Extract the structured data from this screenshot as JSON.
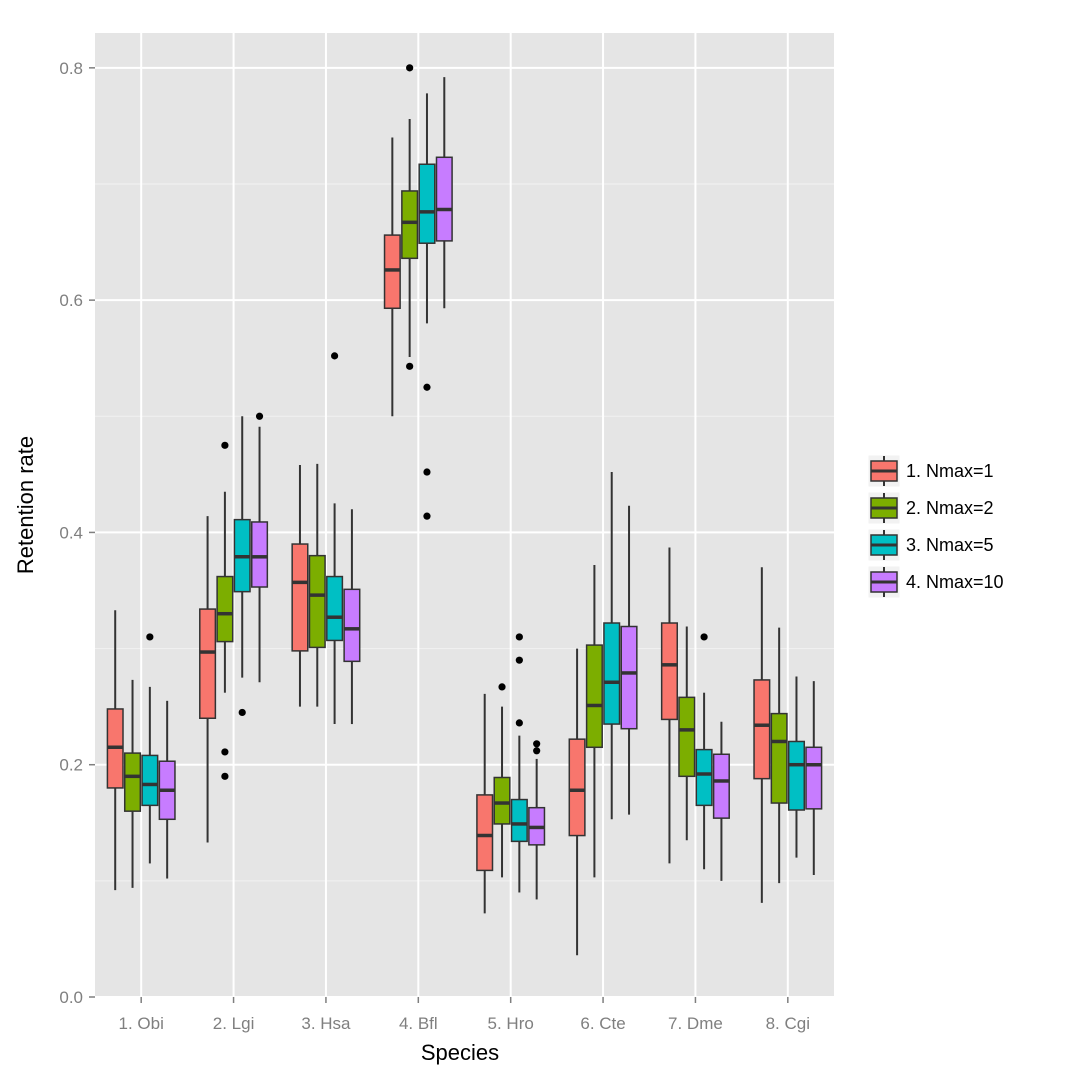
{
  "chart_data": {
    "type": "boxplot",
    "xlabel": "Species",
    "ylabel": "Retention rate",
    "ylim": [
      0,
      0.83
    ],
    "y_ticks": [
      "0.0",
      "0.2",
      "0.4",
      "0.6",
      "0.8"
    ],
    "y_tick_values": [
      0,
      0.2,
      0.4,
      0.6,
      0.8
    ],
    "categories": [
      "1. Obi",
      "2. Lgi",
      "3. Hsa",
      "4. Bfl",
      "5. Hro",
      "6. Cte",
      "7. Dme",
      "8. Cgi"
    ],
    "legend": {
      "position": "right"
    },
    "series": [
      {
        "name": "1. Nmax=1",
        "color": "#F8766D",
        "boxes": [
          {
            "min": 0.092,
            "q1": 0.18,
            "median": 0.215,
            "q3": 0.248,
            "max": 0.333,
            "outliers": []
          },
          {
            "min": 0.133,
            "q1": 0.24,
            "median": 0.297,
            "q3": 0.334,
            "max": 0.414,
            "outliers": []
          },
          {
            "min": 0.25,
            "q1": 0.298,
            "median": 0.357,
            "q3": 0.39,
            "max": 0.458,
            "outliers": []
          },
          {
            "min": 0.5,
            "q1": 0.593,
            "median": 0.626,
            "q3": 0.656,
            "max": 0.74,
            "outliers": []
          },
          {
            "min": 0.072,
            "q1": 0.109,
            "median": 0.139,
            "q3": 0.174,
            "max": 0.261,
            "outliers": []
          },
          {
            "min": 0.036,
            "q1": 0.139,
            "median": 0.178,
            "q3": 0.222,
            "max": 0.3,
            "outliers": []
          },
          {
            "min": 0.115,
            "q1": 0.239,
            "median": 0.286,
            "q3": 0.322,
            "max": 0.387,
            "outliers": []
          },
          {
            "min": 0.081,
            "q1": 0.188,
            "median": 0.234,
            "q3": 0.273,
            "max": 0.37,
            "outliers": []
          }
        ]
      },
      {
        "name": "2. Nmax=2",
        "color": "#7CAE00",
        "boxes": [
          {
            "min": 0.094,
            "q1": 0.16,
            "median": 0.19,
            "q3": 0.21,
            "max": 0.273,
            "outliers": []
          },
          {
            "min": 0.262,
            "q1": 0.306,
            "median": 0.33,
            "q3": 0.362,
            "max": 0.435,
            "outliers": [
              0.475,
              0.211,
              0.19
            ]
          },
          {
            "min": 0.25,
            "q1": 0.301,
            "median": 0.346,
            "q3": 0.38,
            "max": 0.459,
            "outliers": []
          },
          {
            "min": 0.551,
            "q1": 0.636,
            "median": 0.667,
            "q3": 0.694,
            "max": 0.756,
            "outliers": [
              0.8,
              0.543
            ]
          },
          {
            "min": 0.103,
            "q1": 0.149,
            "median": 0.167,
            "q3": 0.189,
            "max": 0.25,
            "outliers": [
              0.267
            ]
          },
          {
            "min": 0.103,
            "q1": 0.215,
            "median": 0.251,
            "q3": 0.303,
            "max": 0.372,
            "outliers": []
          },
          {
            "min": 0.135,
            "q1": 0.19,
            "median": 0.23,
            "q3": 0.258,
            "max": 0.319,
            "outliers": []
          },
          {
            "min": 0.098,
            "q1": 0.167,
            "median": 0.22,
            "q3": 0.244,
            "max": 0.318,
            "outliers": []
          }
        ]
      },
      {
        "name": "3. Nmax=5",
        "color": "#00BFC4",
        "boxes": [
          {
            "min": 0.115,
            "q1": 0.165,
            "median": 0.183,
            "q3": 0.208,
            "max": 0.267,
            "outliers": [
              0.31
            ]
          },
          {
            "min": 0.275,
            "q1": 0.349,
            "median": 0.379,
            "q3": 0.411,
            "max": 0.5,
            "outliers": [
              0.245
            ]
          },
          {
            "min": 0.235,
            "q1": 0.307,
            "median": 0.327,
            "q3": 0.362,
            "max": 0.425,
            "outliers": [
              0.552
            ]
          },
          {
            "min": 0.58,
            "q1": 0.649,
            "median": 0.676,
            "q3": 0.717,
            "max": 0.778,
            "outliers": [
              0.525,
              0.452,
              0.414
            ]
          },
          {
            "min": 0.09,
            "q1": 0.134,
            "median": 0.149,
            "q3": 0.17,
            "max": 0.225,
            "outliers": [
              0.31,
              0.29,
              0.236
            ]
          },
          {
            "min": 0.153,
            "q1": 0.235,
            "median": 0.271,
            "q3": 0.322,
            "max": 0.452,
            "outliers": []
          },
          {
            "min": 0.11,
            "q1": 0.165,
            "median": 0.192,
            "q3": 0.213,
            "max": 0.262,
            "outliers": [
              0.31
            ]
          },
          {
            "min": 0.12,
            "q1": 0.161,
            "median": 0.2,
            "q3": 0.22,
            "max": 0.276,
            "outliers": []
          }
        ]
      },
      {
        "name": "4. Nmax=10",
        "color": "#C77CFF",
        "boxes": [
          {
            "min": 0.102,
            "q1": 0.153,
            "median": 0.178,
            "q3": 0.203,
            "max": 0.255,
            "outliers": []
          },
          {
            "min": 0.271,
            "q1": 0.353,
            "median": 0.379,
            "q3": 0.409,
            "max": 0.491,
            "outliers": [
              0.5
            ]
          },
          {
            "min": 0.235,
            "q1": 0.289,
            "median": 0.317,
            "q3": 0.351,
            "max": 0.42,
            "outliers": []
          },
          {
            "min": 0.593,
            "q1": 0.651,
            "median": 0.678,
            "q3": 0.723,
            "max": 0.792,
            "outliers": []
          },
          {
            "min": 0.084,
            "q1": 0.131,
            "median": 0.146,
            "q3": 0.163,
            "max": 0.205,
            "outliers": [
              0.218,
              0.212
            ]
          },
          {
            "min": 0.157,
            "q1": 0.231,
            "median": 0.279,
            "q3": 0.319,
            "max": 0.423,
            "outliers": []
          },
          {
            "min": 0.1,
            "q1": 0.154,
            "median": 0.186,
            "q3": 0.209,
            "max": 0.237,
            "outliers": []
          },
          {
            "min": 0.105,
            "q1": 0.162,
            "median": 0.2,
            "q3": 0.215,
            "max": 0.272,
            "outliers": []
          }
        ]
      }
    ]
  }
}
